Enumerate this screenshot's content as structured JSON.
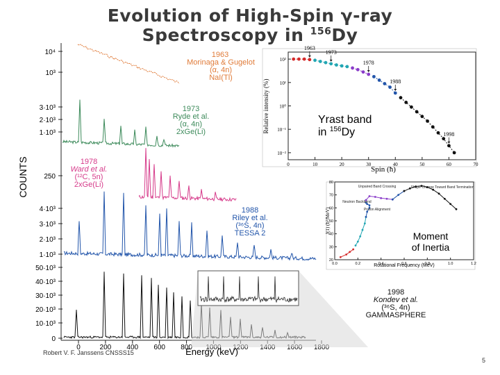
{
  "slide": {
    "title_line1": "Evolution of High-Spin γ-ray",
    "title_line2_prefix": "Spectroscopy in ",
    "title_line2_mass": "156",
    "title_line2_element": "Dy",
    "footer": "Robert V. F. Janssens CNSSS15",
    "page_number": "5"
  },
  "spectra_panel": {
    "ylabel": "COUNTS",
    "left_ticks": [
      "10⁴",
      "10³",
      "3·10³",
      "2·10³",
      "1·10³",
      "250",
      "4·10³",
      "3·10³",
      "2·10³",
      "1·10³",
      "50·10³",
      "40·10³",
      "30·10³",
      "20·10³",
      "10·10³",
      "0"
    ],
    "xlabel": "Energy (keV)",
    "x_ticks": [
      "0",
      "200",
      "400",
      "600",
      "800",
      "1000",
      "1200",
      "1400",
      "1600",
      "1800"
    ],
    "labels": {
      "s1963": [
        "1963",
        "Morinaga & Gugelot",
        "(α, 4n)",
        "NaI(Tl)"
      ],
      "s1973": [
        "1973",
        "Ryde et al.",
        "(α, 4n)",
        "2xGe(Li)"
      ],
      "s1978": [
        "1978",
        "Ward et al.",
        "(¹²C, 5n)",
        "2xGe(Li)"
      ],
      "s1988": [
        "1988",
        "Riley et al.",
        "(³⁶S, 4n)",
        "TESSA 2"
      ],
      "s1998": [
        "1998",
        "Kondev et al.",
        "(³⁶S, 4n)",
        "GAMMASPHERE"
      ]
    },
    "colors": {
      "s1963": "#e07b39",
      "s1973": "#3c8a5a",
      "s1978": "#d63a8a",
      "s1988": "#2255aa",
      "s1998": "#111111",
      "label1963": "#e07b39",
      "label1973": "#3c8a5a",
      "label1978": "#d63a8a",
      "label1988": "#2255aa"
    }
  },
  "chart_data": [
    {
      "type": "scatter",
      "title": "Yrast band in 156Dy",
      "title_line1": "Yrast band",
      "title_line2_prefix": "in ",
      "title_line2_mass": "156",
      "title_line2_element": "Dy",
      "xlabel": "Spin (ħ)",
      "ylabel": "Relative intensity (%)",
      "xlim": [
        0,
        70
      ],
      "ylim_log10": [
        -2.3,
        2.3
      ],
      "x_ticks": [
        "0",
        "10",
        "20",
        "30",
        "40",
        "50",
        "60",
        "70"
      ],
      "y_ticks": [
        {
          "exp": 2,
          "label": "10²"
        },
        {
          "exp": 1,
          "label": "10¹"
        },
        {
          "exp": 0,
          "label": "10⁰"
        },
        {
          "exp": -1,
          "label": "10⁻¹"
        },
        {
          "exp": -2,
          "label": "10⁻²"
        }
      ],
      "series": [
        {
          "name": "1963",
          "color": "#d42a2a",
          "x": [
            2,
            4,
            6,
            8
          ],
          "log10_y": [
            2.0,
            2.0,
            2.0,
            1.98
          ]
        },
        {
          "name": "1973",
          "color": "#22a6b3",
          "x": [
            10,
            12,
            14,
            16,
            18,
            20,
            22
          ],
          "log10_y": [
            1.95,
            1.9,
            1.85,
            1.8,
            1.75,
            1.71,
            1.68
          ]
        },
        {
          "name": "1978",
          "color": "#8a3cc9",
          "x": [
            24,
            26,
            28,
            30
          ],
          "log10_y": [
            1.62,
            1.55,
            1.45,
            1.35
          ]
        },
        {
          "name": "1988",
          "color": "#2255aa",
          "x": [
            32,
            34,
            36,
            38,
            40
          ],
          "log10_y": [
            1.25,
            1.1,
            0.95,
            0.8,
            0.55
          ]
        },
        {
          "name": "1998",
          "color": "#111111",
          "x": [
            42,
            44,
            46,
            48,
            50,
            52,
            54,
            56,
            58,
            60,
            62
          ],
          "log10_y": [
            0.35,
            0.15,
            -0.05,
            -0.25,
            -0.45,
            -0.65,
            -0.9,
            -1.15,
            -1.4,
            -1.7,
            -2.0
          ]
        }
      ],
      "annotations": [
        {
          "text": "1963",
          "x": 8
        },
        {
          "text": "1973",
          "x": 16
        },
        {
          "text": "1978",
          "x": 30
        },
        {
          "text": "1988",
          "x": 40
        },
        {
          "text": "1998",
          "x": 60
        }
      ]
    },
    {
      "type": "line",
      "title": "Moment of Inertia",
      "title_line1": "Moment",
      "title_line2": "of Inertia",
      "xlabel": "Rotational Frequency (MeV)",
      "ylabel": "J(1) (ħ²/MeV)",
      "xlim": [
        0,
        1.2
      ],
      "ylim": [
        20,
        80
      ],
      "x_ticks": [
        "0.0",
        "0.2",
        "0.4",
        "0.6",
        "0.8",
        "1.0",
        "1.2"
      ],
      "y_ticks": [
        "20",
        "30",
        "40",
        "50",
        "60",
        "70",
        "80"
      ],
      "series": [
        {
          "name": "1963",
          "color": "#d42a2a",
          "x": [
            0.05,
            0.1,
            0.13,
            0.16
          ],
          "y": [
            22,
            24,
            26,
            28
          ]
        },
        {
          "name": "1973",
          "color": "#22a6b3",
          "x": [
            0.18,
            0.2,
            0.22,
            0.24,
            0.26,
            0.27
          ],
          "y": [
            31,
            34,
            38,
            43,
            48,
            53
          ]
        },
        {
          "name": "backbend",
          "color": "#2255aa",
          "x": [
            0.27,
            0.28,
            0.3,
            0.3,
            0.28,
            0.27,
            0.27
          ],
          "y": [
            53,
            57,
            60,
            62,
            63,
            64,
            66
          ]
        },
        {
          "name": "1978",
          "color": "#8a3cc9",
          "x": [
            0.27,
            0.3,
            0.35,
            0.4,
            0.45,
            0.5
          ],
          "y": [
            66,
            69,
            68.5,
            67.5,
            67,
            66.5
          ]
        },
        {
          "name": "1988",
          "color": "#2255aa",
          "x": [
            0.5,
            0.55,
            0.6
          ],
          "y": [
            66.5,
            70,
            73
          ]
        },
        {
          "name": "1998",
          "color": "#111111",
          "x": [
            0.6,
            0.65,
            0.7,
            0.75,
            0.8,
            0.85,
            0.9,
            0.95,
            1.0,
            1.05
          ],
          "y": [
            73,
            75,
            76.5,
            77,
            76,
            74,
            71,
            67,
            63,
            59
          ]
        }
      ],
      "annotations": [
        "Unpaired Band Crossing",
        "Neutron Backbend",
        "Proton Alignment",
        "Shape Change Toward Band Termination"
      ]
    }
  ]
}
